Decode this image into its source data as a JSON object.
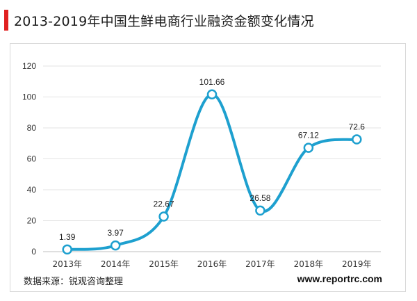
{
  "header": {
    "title": "2013-2019年中国生鲜电商行业融资金额变化情况"
  },
  "footer": {
    "source": "数据来源：锐观咨询整理",
    "website": "www.reportrc.com"
  },
  "colors": {
    "accent": "#e02020",
    "line": "#1ea0cf",
    "grid": "#e3e3e3"
  },
  "chart_data": {
    "type": "line",
    "smooth": true,
    "categories": [
      "2013年",
      "2014年",
      "2015年",
      "2016年",
      "2017年",
      "2018年",
      "2019年"
    ],
    "series": [
      {
        "values": [
          1.39,
          3.97,
          22.67,
          101.66,
          26.58,
          67.12,
          72.6
        ]
      }
    ],
    "data_labels": [
      "1.39",
      "3.97",
      "22.67",
      "101.66",
      "26.58",
      "67.12",
      "72.6"
    ],
    "ylim": [
      0,
      120
    ],
    "yticks": [
      0,
      20,
      40,
      60,
      80,
      100,
      120
    ],
    "grid": true,
    "legend": "none"
  }
}
